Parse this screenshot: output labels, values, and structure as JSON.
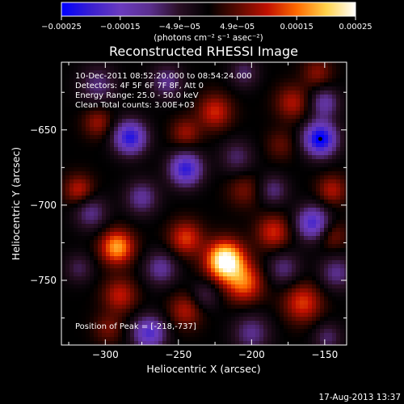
{
  "chart_data": {
    "type": "heatmap",
    "title": "Reconstructed RHESSI Image",
    "xlabel": "Heliocentric X (arcsec)",
    "ylabel": "Heliocentric Y (arcsec)",
    "xlim": [
      -330,
      -135
    ],
    "ylim": [
      -793,
      -605
    ],
    "x_ticks": [
      -300,
      -250,
      -200,
      -150
    ],
    "y_ticks": [
      -650,
      -700,
      -750
    ],
    "x_tick_labels": [
      "−300",
      "−250",
      "−200",
      "−150"
    ],
    "y_tick_labels": [
      "−650",
      "−700",
      "−750"
    ],
    "colorbar": {
      "range": [
        -0.00025,
        0.00025
      ],
      "ticks": [
        -0.00025,
        -0.00015,
        -4.9e-05,
        4.9e-05,
        0.00015,
        0.00025
      ],
      "tick_labels": [
        "−0.00025",
        "−0.00015",
        "−4.9e−05",
        "4.9e−05",
        "0.00015",
        "0.00025"
      ],
      "unit_label": "(photons cm⁻² s⁻¹ asec⁻²)",
      "colors": [
        "#0000ff",
        "#3a1fd0",
        "#6a3bbf",
        "#5b2f8f",
        "#2a0f25",
        "#000000",
        "#5a0a00",
        "#c01000",
        "#ff6a00",
        "#ffd24a",
        "#ffffff"
      ]
    },
    "annotations": [
      "10-Dec-2011 08:52:20.000 to 08:54:24.000",
      "Detectors: 4F 5F 6F 7F 8F, Att 0",
      "Energy Range: 25.0 - 50.0 keV",
      "Clean    Total counts: 3.00E+03"
    ],
    "peak_label": "Position of Peak = [-218,-737]",
    "peak": [
      -218,
      -737
    ],
    "min_marker": [
      -153,
      -656
    ],
    "timestamp": "17-Aug-2013 13:37",
    "features": [
      {
        "x": -218,
        "y": -737,
        "v": 0.00027,
        "s": 9
      },
      {
        "x": -292,
        "y": -728,
        "v": 0.00018,
        "s": 8
      },
      {
        "x": -245,
        "y": -722,
        "v": 0.00012,
        "s": 8
      },
      {
        "x": -205,
        "y": -752,
        "v": 0.00014,
        "s": 9
      },
      {
        "x": -185,
        "y": -718,
        "v": 0.00011,
        "s": 8
      },
      {
        "x": -290,
        "y": -760,
        "v": 0.0001,
        "s": 8
      },
      {
        "x": -245,
        "y": -770,
        "v": 9e-05,
        "s": 8
      },
      {
        "x": -165,
        "y": -765,
        "v": 0.00012,
        "s": 9
      },
      {
        "x": -145,
        "y": -720,
        "v": 7e-05,
        "s": 7
      },
      {
        "x": -145,
        "y": -690,
        "v": 9e-05,
        "s": 7
      },
      {
        "x": -225,
        "y": -638,
        "v": 0.00011,
        "s": 8
      },
      {
        "x": -245,
        "y": -652,
        "v": 8e-05,
        "s": 7
      },
      {
        "x": -172,
        "y": -632,
        "v": 9e-05,
        "s": 8
      },
      {
        "x": -318,
        "y": -690,
        "v": 0.0001,
        "s": 7
      },
      {
        "x": -305,
        "y": -645,
        "v": 8e-05,
        "s": 7
      },
      {
        "x": -155,
        "y": -612,
        "v": 7e-05,
        "s": 7
      },
      {
        "x": -298,
        "y": -782,
        "v": 6e-05,
        "s": 7
      },
      {
        "x": -205,
        "y": -690,
        "v": 6e-05,
        "s": 8
      },
      {
        "x": -180,
        "y": -660,
        "v": 5e-05,
        "s": 7
      },
      {
        "x": -153,
        "y": -656,
        "v": -0.00026,
        "s": 8
      },
      {
        "x": -283,
        "y": -655,
        "v": -0.00022,
        "s": 8
      },
      {
        "x": -245,
        "y": -676,
        "v": -0.00021,
        "s": 8
      },
      {
        "x": -158,
        "y": -712,
        "v": -0.00019,
        "s": 8
      },
      {
        "x": -270,
        "y": -785,
        "v": -0.00018,
        "s": 8
      },
      {
        "x": -305,
        "y": -620,
        "v": -9e-05,
        "s": 9
      },
      {
        "x": -258,
        "y": -618,
        "v": -0.0001,
        "s": 8
      },
      {
        "x": -205,
        "y": -612,
        "v": -8e-05,
        "s": 7
      },
      {
        "x": -310,
        "y": -705,
        "v": -0.0001,
        "s": 8
      },
      {
        "x": -275,
        "y": -695,
        "v": -0.00011,
        "s": 8
      },
      {
        "x": -210,
        "y": -668,
        "v": -8e-05,
        "s": 8
      },
      {
        "x": -185,
        "y": -690,
        "v": -9e-05,
        "s": 7
      },
      {
        "x": -262,
        "y": -742,
        "v": -0.00011,
        "s": 8
      },
      {
        "x": -232,
        "y": -760,
        "v": -7e-05,
        "s": 7
      },
      {
        "x": -178,
        "y": -742,
        "v": -9e-05,
        "s": 8
      },
      {
        "x": -142,
        "y": -745,
        "v": -0.0001,
        "s": 8
      },
      {
        "x": -200,
        "y": -785,
        "v": -0.0001,
        "s": 9
      },
      {
        "x": -148,
        "y": -788,
        "v": -8e-05,
        "s": 7
      },
      {
        "x": -318,
        "y": -742,
        "v": -7e-05,
        "s": 7
      },
      {
        "x": -150,
        "y": -632,
        "v": -0.00012,
        "s": 7
      }
    ]
  }
}
